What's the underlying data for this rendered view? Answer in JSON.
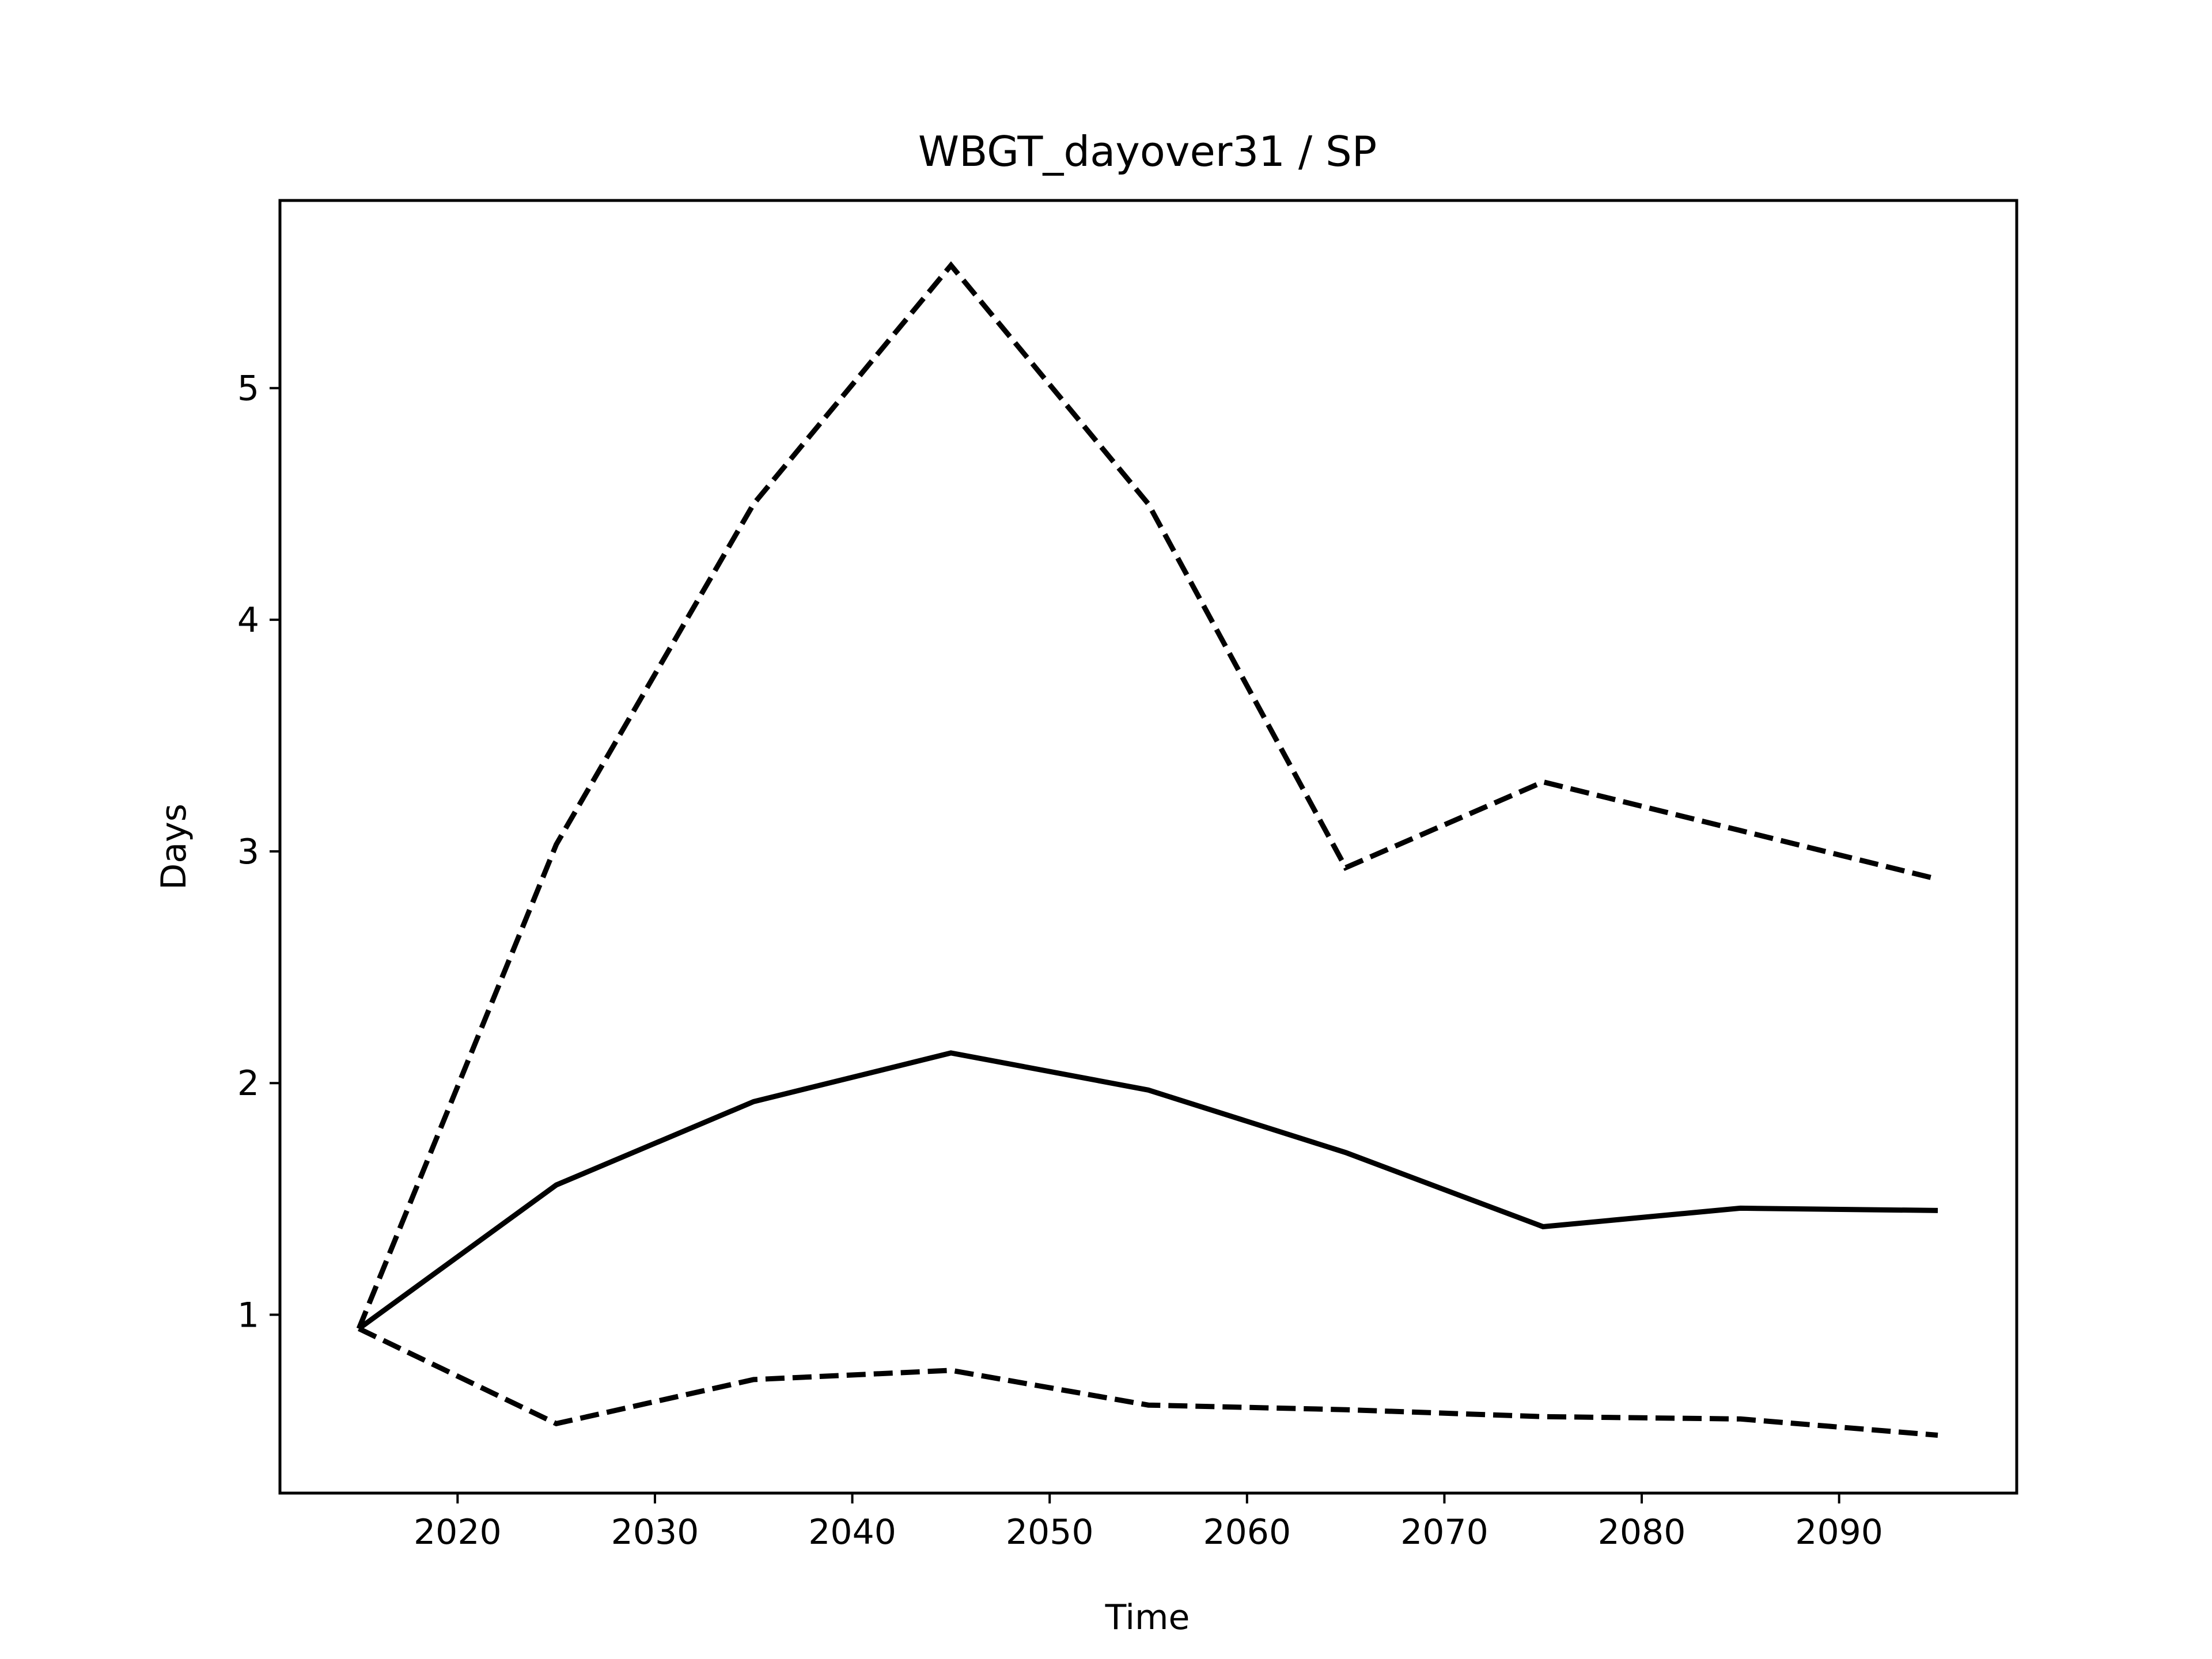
{
  "chart_data": {
    "type": "line",
    "title": "WBGT_dayover31 / SP",
    "xlabel": "Time",
    "ylabel": "Days",
    "xlim": [
      2011,
      2099
    ],
    "ylim": [
      0.23,
      5.81
    ],
    "x_ticks": [
      2020,
      2030,
      2040,
      2050,
      2060,
      2070,
      2080,
      2090
    ],
    "y_ticks": [
      1,
      2,
      3,
      4,
      5
    ],
    "grid": false,
    "legend": "none",
    "x": [
      2015,
      2025,
      2035,
      2045,
      2055,
      2065,
      2075,
      2085,
      2095
    ],
    "series": [
      {
        "style": "solid",
        "color": "#000000",
        "values": [
          0.94,
          1.56,
          1.92,
          2.13,
          1.97,
          1.7,
          1.38,
          1.46,
          1.45
        ]
      },
      {
        "style": "dashed",
        "color": "#000000",
        "values": [
          0.94,
          3.03,
          4.5,
          5.53,
          4.5,
          2.93,
          3.3,
          3.09,
          2.88
        ]
      },
      {
        "style": "dashed",
        "color": "#000000",
        "values": [
          0.94,
          0.53,
          0.72,
          0.76,
          0.61,
          0.59,
          0.56,
          0.55,
          0.48
        ]
      }
    ]
  }
}
